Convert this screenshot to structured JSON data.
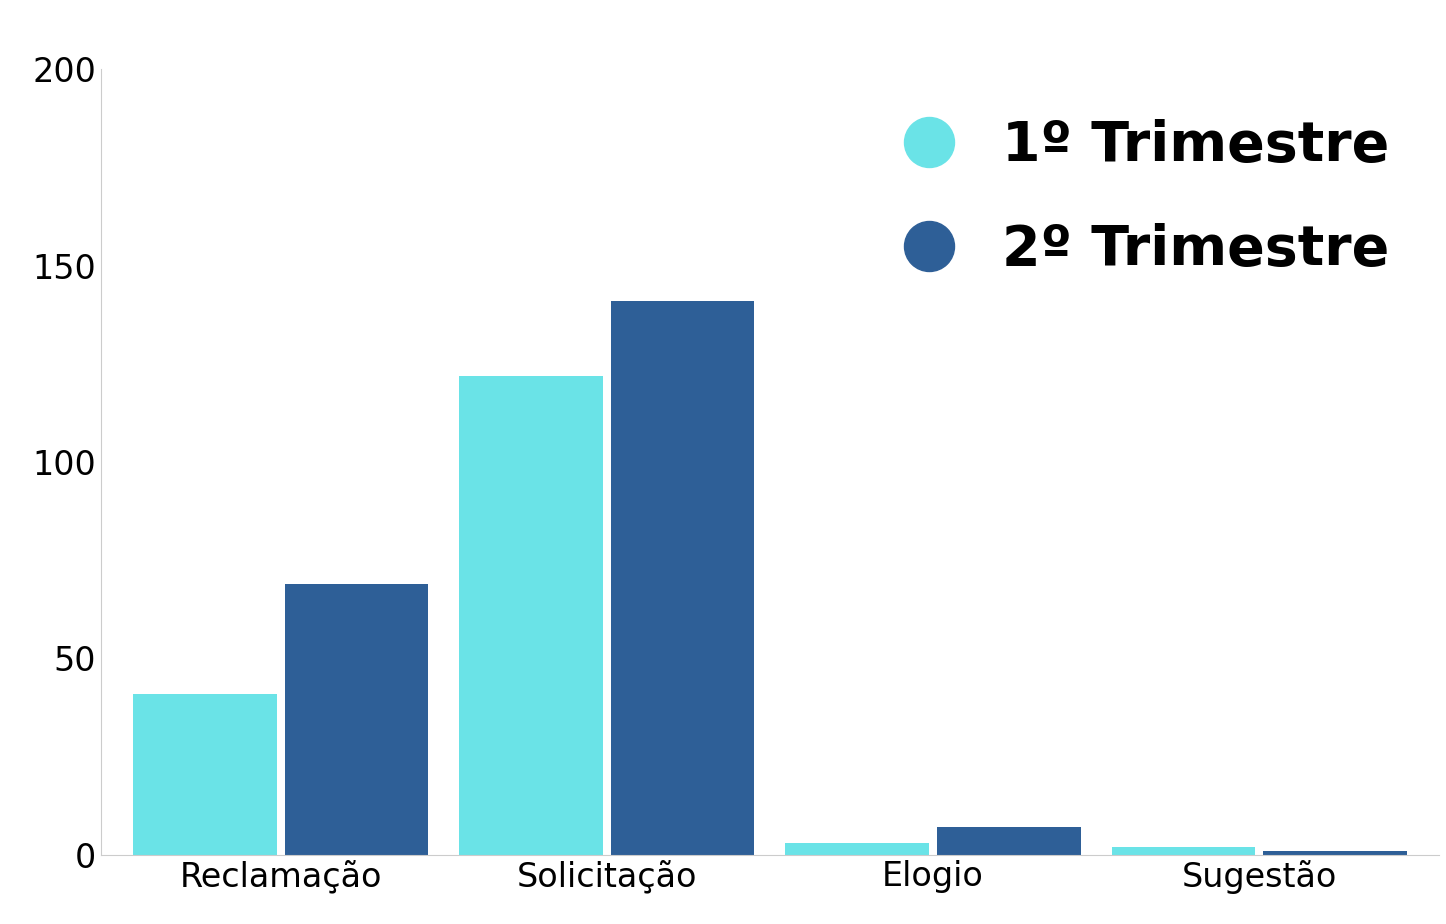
{
  "chart_data": {
    "type": "bar",
    "categories": [
      "Reclamação",
      "Solicitação",
      "Elogio",
      "Sugestão"
    ],
    "series": [
      {
        "name": "1º Trimestre",
        "color": "#6ae3e7",
        "values": [
          41,
          122,
          3,
          2
        ]
      },
      {
        "name": "2º Trimestre",
        "color": "#2e5f97",
        "values": [
          69,
          141,
          7,
          1
        ]
      }
    ],
    "ylim": [
      0,
      200
    ],
    "yticks": [
      0,
      50,
      100,
      150,
      200
    ],
    "grid": false,
    "legend": "upper right"
  }
}
